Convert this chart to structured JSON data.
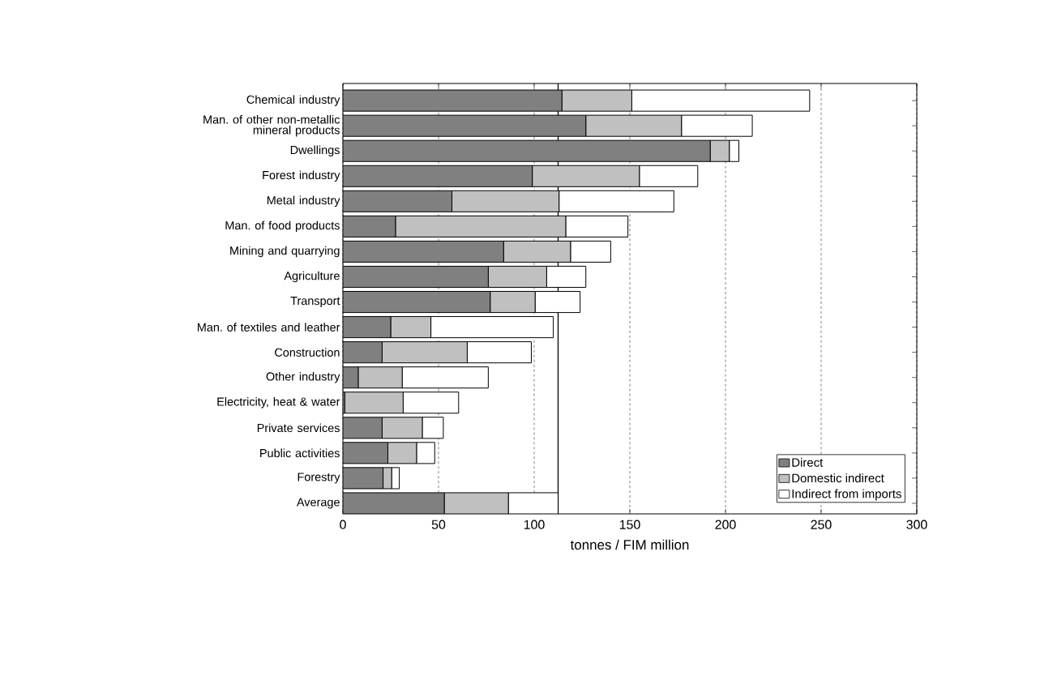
{
  "chart_data": {
    "type": "bar",
    "orientation": "horizontal",
    "stacked": true,
    "xlabel": "tonnes / FIM million",
    "categories": [
      "Chemical industry",
      "Man. of other non-metallic mineral products",
      "Dwellings",
      "Forest industry",
      "Metal industry",
      "Man. of food products",
      "Mining and quarrying",
      "Agriculture",
      "Transport",
      "Man. of textiles and leather",
      "Construction",
      "Other industry",
      "Electricity, heat & water",
      "Private services",
      "Public activities",
      "Forestry",
      "Average"
    ],
    "series": [
      {
        "name": "Direct",
        "color": "#808080",
        "values": [
          114.5,
          127,
          192,
          99,
          57,
          27.5,
          84,
          76,
          77,
          25,
          20.5,
          8,
          1,
          20.5,
          23.5,
          21,
          53
        ]
      },
      {
        "name": "Domestic indirect",
        "color": "#c0c0c0",
        "values": [
          36.5,
          50,
          10,
          56,
          56,
          89,
          35,
          30.5,
          23.5,
          21,
          44.5,
          23,
          30.5,
          21,
          15,
          4.5,
          33.5
        ]
      },
      {
        "name": "Indirect from imports",
        "color": "#ffffff",
        "values": [
          93,
          37,
          5,
          30.5,
          60,
          32.5,
          21,
          20.5,
          23.5,
          64,
          33.5,
          45,
          29,
          11,
          9.5,
          4,
          26
        ]
      }
    ],
    "xlim": [
      0,
      300
    ],
    "xticks": [
      0,
      50,
      100,
      150,
      200,
      250,
      300
    ],
    "grid": "x",
    "legend": "bottom right",
    "ref_lines": [
      {
        "axis": "x",
        "value": 112.5,
        "color": "#000000"
      }
    ]
  }
}
